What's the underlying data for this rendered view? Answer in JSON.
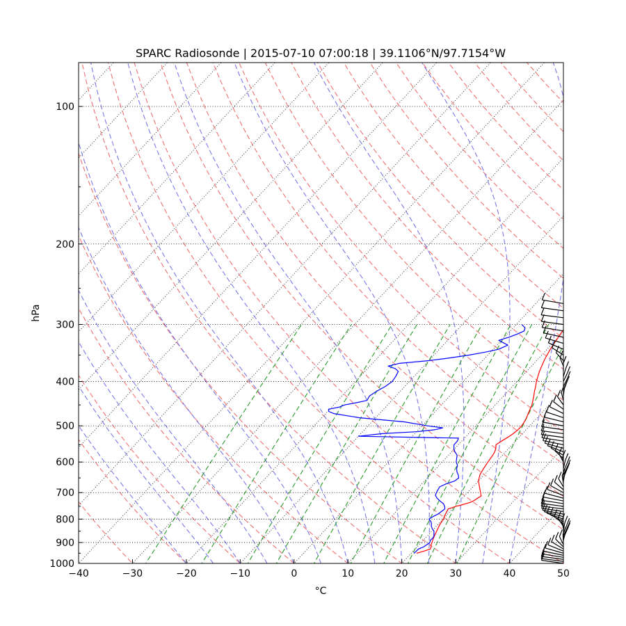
{
  "chart_data": {
    "type": "line",
    "subtype": "skew-T log-P diagram",
    "title": "SPARC Radiosonde | 2015-07-10 07:00:18 | 39.1106°N/97.7154°W",
    "xlabel": "°C",
    "ylabel": "hPa",
    "xlim": [
      -40,
      50
    ],
    "ylim": [
      1000,
      80
    ],
    "y_scale": "log",
    "x_ticks": [
      "−40",
      "−30",
      "−20",
      "−10",
      "0",
      "10",
      "20",
      "30",
      "40",
      "50"
    ],
    "y_ticks": [
      "100",
      "200",
      "300",
      "400",
      "500",
      "600",
      "700",
      "800",
      "900",
      "1000"
    ],
    "pressure_grid": [
      100,
      200,
      300,
      400,
      500,
      600,
      700,
      800,
      900,
      1000
    ],
    "grid": true,
    "reference_lines": {
      "isotherms": {
        "style": "dotted",
        "color": "#000000"
      },
      "dry_adiabats": {
        "style": "dashed",
        "color": "#f07070"
      },
      "moist_adiabats": {
        "style": "dashed",
        "color": "#7878e8"
      },
      "mixing_ratio": {
        "style": "dashed",
        "color": "#2a9a2a"
      }
    },
    "series": [
      {
        "role": "temperature",
        "color": "#ff0000",
        "points": [
          [
            950,
            21.0
          ],
          [
            940,
            22.0
          ],
          [
            930,
            22.8
          ],
          [
            920,
            22.6
          ],
          [
            910,
            22.2
          ],
          [
            900,
            22.0
          ],
          [
            880,
            21.5
          ],
          [
            860,
            21.1
          ],
          [
            840,
            20.7
          ],
          [
            820,
            20.3
          ],
          [
            800,
            20.1
          ],
          [
            790,
            19.8
          ],
          [
            780,
            19.6
          ],
          [
            770,
            19.4
          ],
          [
            760,
            19.2
          ],
          [
            750,
            20.2
          ],
          [
            745,
            21.0
          ],
          [
            740,
            21.6
          ],
          [
            735,
            22.2
          ],
          [
            728,
            22.6
          ],
          [
            720,
            22.8
          ],
          [
            712,
            23.1
          ],
          [
            700,
            22.4
          ],
          [
            690,
            21.8
          ],
          [
            680,
            21.2
          ],
          [
            670,
            20.6
          ],
          [
            660,
            20.0
          ],
          [
            650,
            19.6
          ],
          [
            640,
            19.2
          ],
          [
            630,
            19.0
          ],
          [
            620,
            18.8
          ],
          [
            600,
            18.5
          ],
          [
            580,
            18.2
          ],
          [
            570,
            18.0
          ],
          [
            560,
            17.6
          ],
          [
            550,
            17.0
          ],
          [
            540,
            17.4
          ],
          [
            530,
            17.9
          ],
          [
            520,
            18.3
          ],
          [
            510,
            18.5
          ],
          [
            500,
            18.5
          ],
          [
            490,
            18.3
          ],
          [
            480,
            18.0
          ],
          [
            470,
            17.6
          ],
          [
            460,
            17.2
          ],
          [
            450,
            16.8
          ],
          [
            440,
            16.2
          ],
          [
            430,
            15.6
          ],
          [
            420,
            14.9
          ],
          [
            410,
            14.3
          ],
          [
            400,
            13.6
          ],
          [
            390,
            13.0
          ],
          [
            380,
            12.4
          ],
          [
            370,
            11.9
          ],
          [
            360,
            11.4
          ],
          [
            350,
            11.0
          ],
          [
            340,
            10.6
          ],
          [
            330,
            10.3
          ],
          [
            320,
            10.0
          ],
          [
            310,
            9.7
          ],
          [
            300,
            9.5
          ]
        ]
      },
      {
        "role": "dewpoint",
        "color": "#0000ff",
        "points": [
          [
            950,
            20.5
          ],
          [
            940,
            20.6
          ],
          [
            930,
            20.6
          ],
          [
            920,
            21.2
          ],
          [
            910,
            21.4
          ],
          [
            900,
            21.6
          ],
          [
            890,
            21.3
          ],
          [
            880,
            21.4
          ],
          [
            870,
            21.2
          ],
          [
            860,
            20.8
          ],
          [
            850,
            20.4
          ],
          [
            840,
            19.7
          ],
          [
            830,
            19.1
          ],
          [
            820,
            18.7
          ],
          [
            810,
            18.2
          ],
          [
            800,
            17.4
          ],
          [
            790,
            17.7
          ],
          [
            780,
            18.2
          ],
          [
            770,
            18.4
          ],
          [
            760,
            18.6
          ],
          [
            750,
            18.1
          ],
          [
            740,
            17.4
          ],
          [
            730,
            16.3
          ],
          [
            720,
            15.3
          ],
          [
            710,
            14.5
          ],
          [
            700,
            14.2
          ],
          [
            690,
            14.0
          ],
          [
            680,
            13.8
          ],
          [
            670,
            14.5
          ],
          [
            660,
            15.6
          ],
          [
            650,
            15.8
          ],
          [
            640,
            15.2
          ],
          [
            630,
            14.4
          ],
          [
            620,
            13.8
          ],
          [
            610,
            13.4
          ],
          [
            600,
            12.6
          ],
          [
            590,
            12.1
          ],
          [
            580,
            11.6
          ],
          [
            570,
            10.6
          ],
          [
            560,
            9.8
          ],
          [
            550,
            9.2
          ],
          [
            540,
            9.2
          ],
          [
            532,
            8.9
          ],
          [
            527,
            -10.0
          ],
          [
            520,
            -6.0
          ],
          [
            515,
            0.0
          ],
          [
            510,
            3.0
          ],
          [
            505,
            4.2
          ],
          [
            500,
            1.0
          ],
          [
            490,
            -4.0
          ],
          [
            480,
            -13.0
          ],
          [
            470,
            -18.5
          ],
          [
            465,
            -19.8
          ],
          [
            460,
            -20.2
          ],
          [
            455,
            -18.6
          ],
          [
            450,
            -18.0
          ],
          [
            445,
            -16.2
          ],
          [
            440,
            -14.6
          ],
          [
            430,
            -14.9
          ],
          [
            420,
            -14.4
          ],
          [
            410,
            -13.6
          ],
          [
            400,
            -13.2
          ],
          [
            390,
            -13.4
          ],
          [
            380,
            -13.8
          ],
          [
            375,
            -14.8
          ],
          [
            370,
            -16.6
          ],
          [
            365,
            -15.0
          ],
          [
            360,
            -10.0
          ],
          [
            355,
            -6.5
          ],
          [
            350,
            -3.5
          ],
          [
            345,
            -1.0
          ],
          [
            340,
            1.0
          ],
          [
            333,
            2.0
          ],
          [
            325,
            -0.5
          ],
          [
            320,
            0.8
          ],
          [
            315,
            1.8
          ],
          [
            310,
            2.6
          ],
          [
            305,
            2.2
          ],
          [
            300,
            1.0
          ]
        ]
      }
    ],
    "wind_barbs": {
      "color": "#000000",
      "pressure_range": [
        1000,
        270
      ]
    }
  }
}
